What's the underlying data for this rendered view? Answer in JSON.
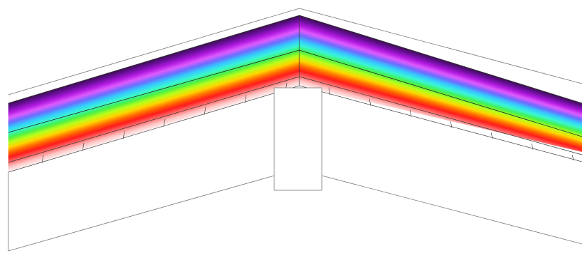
{
  "diagram": {
    "type": "thermal-gradient-roof-section",
    "colors": {
      "background": "#ffffff",
      "outline": "#555555",
      "mortar": "#444444",
      "gradient_stops": [
        "#3a0f4f",
        "#6e0fa0",
        "#b21ae0",
        "#e05cff",
        "#6a6cff",
        "#36c8ff",
        "#3af7d2",
        "#45f04a",
        "#b8ff1a",
        "#ffd400",
        "#ff6a00",
        "#ff1a1a",
        "#ff6b6b",
        "#ffc4c4",
        "#fff4f4"
      ]
    }
  }
}
